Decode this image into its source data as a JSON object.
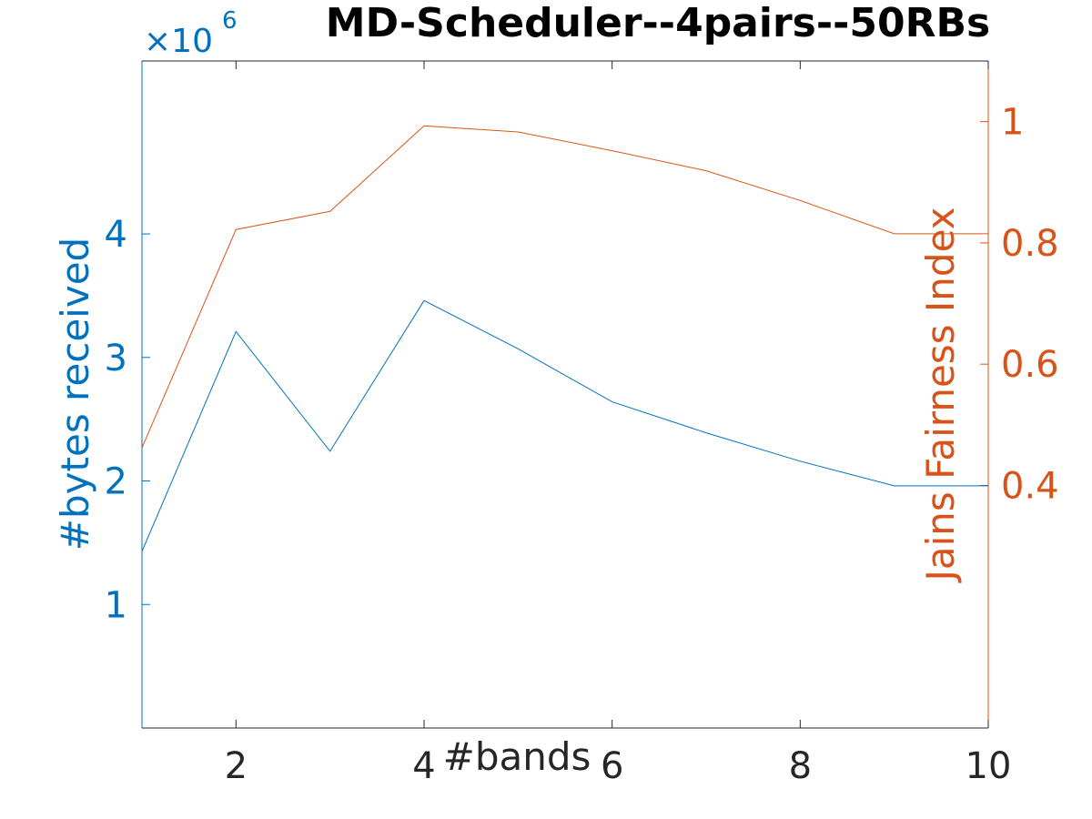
{
  "chart_data": {
    "type": "line",
    "title": "MD-Scheduler--4pairs--50RBs",
    "xlabel": "#bands",
    "xlim": [
      1,
      10
    ],
    "xticks": [
      2,
      4,
      6,
      8,
      10
    ],
    "x": [
      1,
      2,
      3,
      4,
      5,
      6,
      7,
      8,
      9,
      10
    ],
    "left_axis": {
      "label": "#bytes received",
      "exponent_label": "×10",
      "exponent_power": "6",
      "ylim": [
        0,
        5.4
      ],
      "ticks": [
        1,
        2,
        3,
        4
      ],
      "color": "#0072BD"
    },
    "right_axis": {
      "label": "Jains Fairness Index",
      "ylim": [
        0.0,
        1.1
      ],
      "ticks": [
        0.4,
        0.6,
        0.8,
        1
      ],
      "tick_labels": [
        "0.4",
        "0.6",
        "0.8",
        "1"
      ],
      "color": "#D95319"
    },
    "series": [
      {
        "axis": "left",
        "color": "#0072BD",
        "values": [
          1.43,
          3.21,
          2.24,
          3.46,
          3.07,
          2.64,
          2.39,
          2.16,
          1.96,
          1.96
        ]
      },
      {
        "axis": "right",
        "color": "#D95319",
        "values": [
          0.462,
          0.822,
          0.852,
          0.993,
          0.983,
          0.952,
          0.919,
          0.87,
          0.815,
          0.815
        ]
      }
    ],
    "grid": false
  }
}
